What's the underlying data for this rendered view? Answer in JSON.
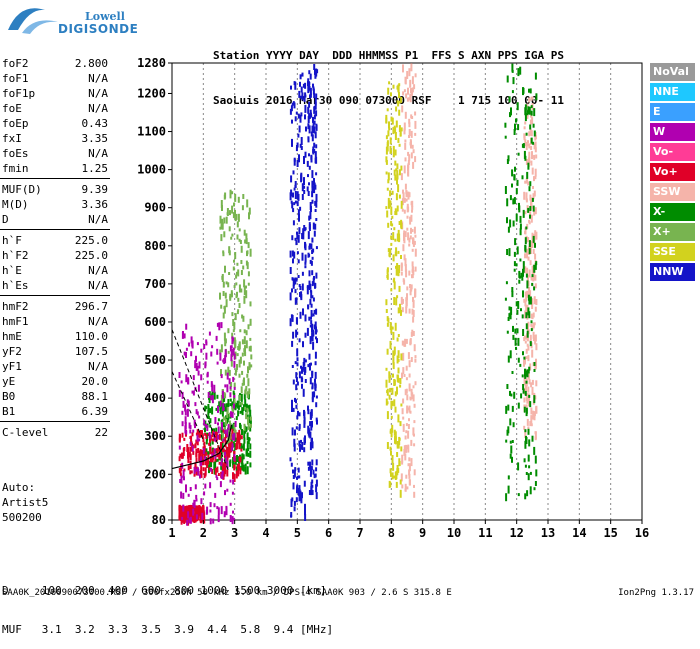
{
  "logo": {
    "line1": "Lowell",
    "line2": "DIGISONDE"
  },
  "header": {
    "row1": "Station YYYY DAY  DDD HHMMSS P1  FFS S AXN PPS IGA PS",
    "row2": "SaoLuis 2016 Mar30 090 073000 RSF    1 715 100 00- 11"
  },
  "params": [
    {
      "name": "foF2",
      "value": "2.800"
    },
    {
      "name": "foF1",
      "value": "N/A"
    },
    {
      "name": "foF1p",
      "value": "N/A"
    },
    {
      "name": "foE",
      "value": "N/A"
    },
    {
      "name": "foEp",
      "value": "0.43"
    },
    {
      "name": "fxI",
      "value": "3.35"
    },
    {
      "name": "foEs",
      "value": "N/A"
    },
    {
      "name": "fmin",
      "value": "1.25"
    },
    {
      "name": "MUF(D)",
      "value": "9.39"
    },
    {
      "name": "M(D)",
      "value": "3.36"
    },
    {
      "name": "D",
      "value": "N/A"
    },
    {
      "name": "h`F",
      "value": "225.0"
    },
    {
      "name": "h`F2",
      "value": "225.0"
    },
    {
      "name": "h`E",
      "value": "N/A"
    },
    {
      "name": "h`Es",
      "value": "N/A"
    },
    {
      "name": "hmF2",
      "value": "296.7"
    },
    {
      "name": "hmF1",
      "value": "N/A"
    },
    {
      "name": "hmE",
      "value": "110.0"
    },
    {
      "name": "yF2",
      "value": "107.5"
    },
    {
      "name": "yF1",
      "value": "N/A"
    },
    {
      "name": "yE",
      "value": "20.0"
    },
    {
      "name": "B0",
      "value": "88.1"
    },
    {
      "name": "B1",
      "value": "6.39"
    },
    {
      "name": "C-level",
      "value": "22"
    }
  ],
  "auto": {
    "line1": "Auto:",
    "line2": "Artist5",
    "line3": "500200"
  },
  "legend": [
    {
      "label": "NoVal",
      "color": "#9a9a9a"
    },
    {
      "label": "NNE",
      "color": "#1ec8ff"
    },
    {
      "label": "E",
      "color": "#3aa0ff"
    },
    {
      "label": "W",
      "color": "#b000b0"
    },
    {
      "label": "Vo-",
      "color": "#ff3c96"
    },
    {
      "label": "Vo+",
      "color": "#e00028"
    },
    {
      "label": "SSW",
      "color": "#f5b4aa"
    },
    {
      "label": "X-",
      "color": "#008c00"
    },
    {
      "label": "X+",
      "color": "#78b450"
    },
    {
      "label": "SSE",
      "color": "#d2d21e"
    },
    {
      "label": "NNW",
      "color": "#1414c8"
    }
  ],
  "table": {
    "row1": "D     100  200  400  600  800 1000 1500 3000 [km]",
    "row2": "MUF   3.1  3.2  3.3  3.5  3.9  4.4  5.8  9.4 [MHz]"
  },
  "footer": "SAA0K_2016090073000.RSF / 300fx256h 50 kHz 5.0 km / DPS-4 SAA0K 903 / 2.6 S 315.8 E",
  "footer_right": "Ion2Png 1.3.17",
  "chart_data": {
    "type": "scatter",
    "title": "",
    "xlabel": "",
    "ylabel": "",
    "xlim": [
      1,
      16
    ],
    "ylim": [
      80,
      1280
    ],
    "x_ticks": [
      1,
      2,
      3,
      4,
      5,
      6,
      7,
      8,
      9,
      10,
      11,
      12,
      13,
      14,
      15,
      16
    ],
    "y_ticks": [
      80,
      200,
      300,
      400,
      500,
      600,
      700,
      800,
      900,
      1000,
      1100,
      1200,
      1280
    ],
    "grid": "vertical dotted",
    "legend_position": "right",
    "series": [
      {
        "name": "NNW",
        "color": "#1414c8",
        "clusters": [
          {
            "x": [
              4.75,
              5.25
            ],
            "y": [
              80,
              1280
            ]
          },
          {
            "x": [
              5.3,
              5.6
            ],
            "y": [
              150,
              1280
            ]
          }
        ]
      },
      {
        "name": "SSW",
        "color": "#f5b4aa",
        "clusters": [
          {
            "x": [
              8.3,
              8.75
            ],
            "y": [
              150,
              1280
            ]
          },
          {
            "x": [
              12.2,
              12.6
            ],
            "y": [
              300,
              1200
            ]
          }
        ]
      },
      {
        "name": "SSE",
        "color": "#d2d21e",
        "clusters": [
          {
            "x": [
              7.8,
              8.3
            ],
            "y": [
              150,
              1250
            ]
          }
        ]
      },
      {
        "name": "X-",
        "color": "#008c00",
        "clusters": [
          {
            "x": [
              11.6,
              12.6
            ],
            "y": [
              150,
              1280
            ]
          },
          {
            "x": [
              2.0,
              3.5
            ],
            "y": [
              220,
              420
            ]
          }
        ]
      },
      {
        "name": "Vo+",
        "color": "#e00028",
        "clusters": [
          {
            "x": [
              1.2,
              3.2
            ],
            "y": [
              200,
              320
            ]
          },
          {
            "x": [
              1.2,
              2.0
            ],
            "y": [
              85,
              120
            ]
          }
        ]
      },
      {
        "name": "X+",
        "color": "#78b450",
        "clusters": [
          {
            "x": [
              2.5,
              3.5
            ],
            "y": [
              300,
              950
            ]
          }
        ]
      },
      {
        "name": "W",
        "color": "#b000b0",
        "clusters": [
          {
            "x": [
              1.2,
              3.0
            ],
            "y": [
              80,
              600
            ]
          }
        ]
      }
    ],
    "trace_curve": {
      "x": [
        1.0,
        1.5,
        2.0,
        2.5,
        2.8,
        2.9
      ],
      "y": [
        215,
        225,
        235,
        255,
        290,
        330
      ]
    },
    "dashed_lines": [
      {
        "x": [
          1.0,
          2.8
        ],
        "y": [
          580,
          210
        ]
      },
      {
        "x": [
          1.0,
          2.0
        ],
        "y": [
          470,
          290
        ]
      }
    ]
  }
}
